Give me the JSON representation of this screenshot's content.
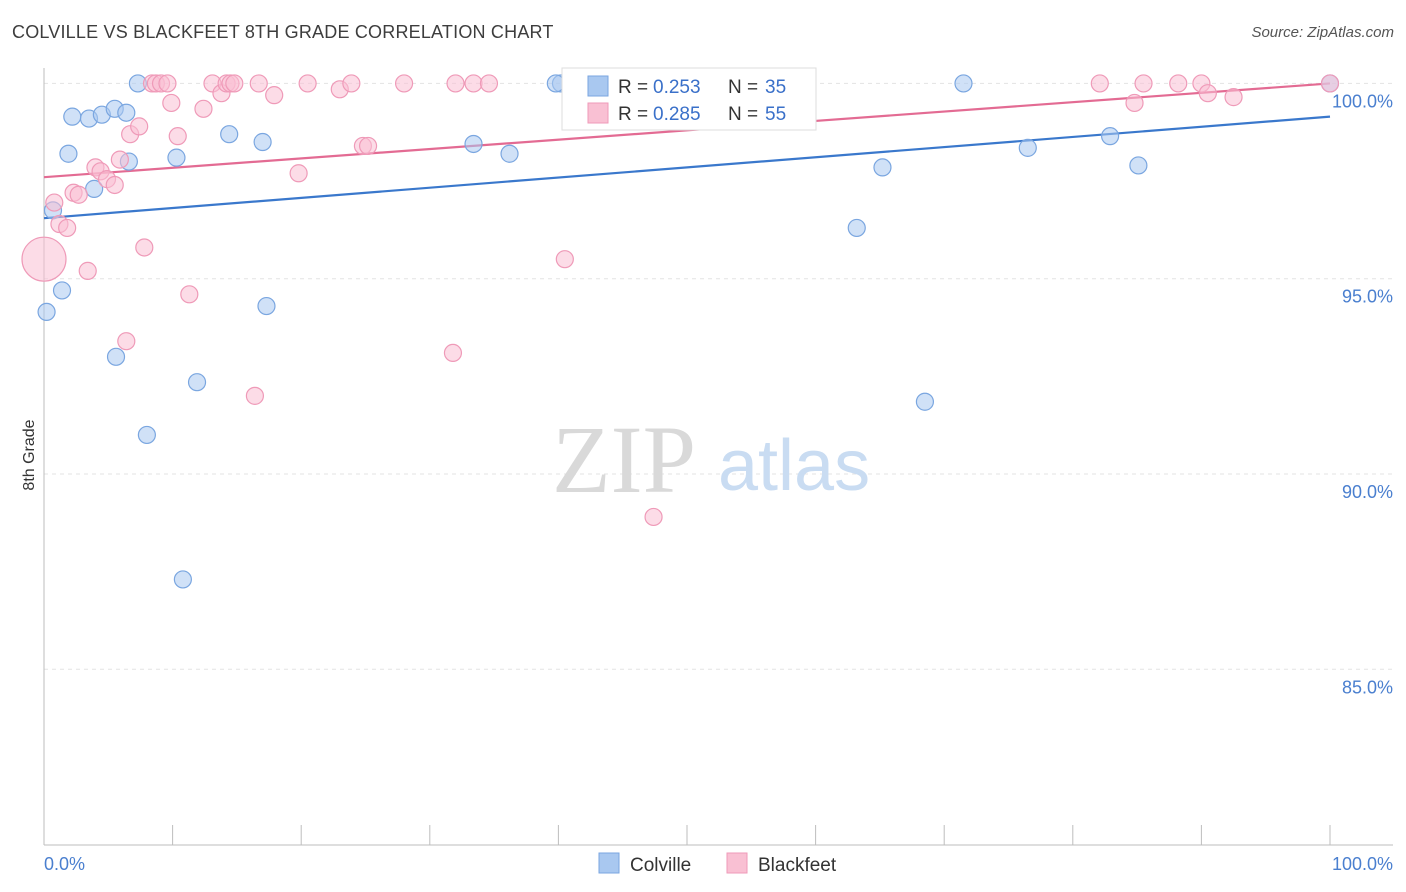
{
  "title": "COLVILLE VS BLACKFEET 8TH GRADE CORRELATION CHART",
  "source": "Source: ZipAtlas.com",
  "watermark": {
    "zip": "ZIP",
    "atlas": "atlas"
  },
  "chart_data": {
    "type": "scatter",
    "xlabel": "",
    "ylabel": "8th Grade",
    "xlim": [
      0,
      100
    ],
    "ylim": [
      80.5,
      100.6
    ],
    "x_tick_labels": {
      "min": "0.0%",
      "max": "100.0%"
    },
    "y_ticks": [
      {
        "value": 100,
        "label": "100.0%"
      },
      {
        "value": 95,
        "label": "95.0%"
      },
      {
        "value": 90,
        "label": "90.0%"
      },
      {
        "value": 85,
        "label": "85.0%"
      }
    ],
    "legend_position": "top-center",
    "series": [
      {
        "name": "Colville",
        "color": "#a9c8f0",
        "stroke": "#7aa6e0",
        "line_color": "#3a78cc",
        "R": "0.253",
        "N": "35",
        "trend": {
          "x": [
            0,
            100
          ],
          "y": [
            96.55,
            99.15
          ]
        },
        "points": [
          [
            0.2,
            94.15
          ],
          [
            0.7,
            96.75
          ],
          [
            1.4,
            94.7
          ],
          [
            1.9,
            98.2
          ],
          [
            2.2,
            99.15
          ],
          [
            3.5,
            99.1
          ],
          [
            3.9,
            97.3
          ],
          [
            4.5,
            99.2
          ],
          [
            5.6,
            93.0
          ],
          [
            5.5,
            99.35
          ],
          [
            6.4,
            99.25
          ],
          [
            6.6,
            98.0
          ],
          [
            7.3,
            100.0
          ],
          [
            8.0,
            91.0
          ],
          [
            10.3,
            98.1
          ],
          [
            10.8,
            87.3
          ],
          [
            11.9,
            92.35
          ],
          [
            14.4,
            98.7
          ],
          [
            17.3,
            94.3
          ],
          [
            17.0,
            98.5
          ],
          [
            33.4,
            98.45
          ],
          [
            36.2,
            98.2
          ],
          [
            40.2,
            100.0
          ],
          [
            45.4,
            100.0
          ],
          [
            47.1,
            100.0
          ],
          [
            53.8,
            100.0
          ],
          [
            63.2,
            96.3
          ],
          [
            65.2,
            97.85
          ],
          [
            68.5,
            91.85
          ],
          [
            71.5,
            100.0
          ],
          [
            76.5,
            98.35
          ],
          [
            82.9,
            98.65
          ],
          [
            85.1,
            97.9
          ],
          [
            100.0,
            100.0
          ],
          [
            39.8,
            100.0
          ]
        ]
      },
      {
        "name": "Blackfeet",
        "color": "#f9c0d3",
        "stroke": "#ef9ab8",
        "line_color": "#e36b93",
        "R": "0.285",
        "N": "55",
        "trend": {
          "x": [
            0,
            100
          ],
          "y": [
            97.6,
            100.0
          ]
        },
        "points": [
          [
            0.0,
            95.5,
            "large"
          ],
          [
            0.8,
            96.95
          ],
          [
            1.2,
            96.4
          ],
          [
            1.8,
            96.3
          ],
          [
            2.3,
            97.2
          ],
          [
            2.7,
            97.15
          ],
          [
            3.4,
            95.2
          ],
          [
            4.0,
            97.85
          ],
          [
            4.4,
            97.75
          ],
          [
            4.9,
            97.55
          ],
          [
            5.5,
            97.4
          ],
          [
            5.9,
            98.05
          ],
          [
            6.4,
            93.4
          ],
          [
            6.7,
            98.7
          ],
          [
            7.4,
            98.9
          ],
          [
            7.8,
            95.8
          ],
          [
            8.4,
            100.0
          ],
          [
            8.7,
            100.0
          ],
          [
            9.1,
            100.0
          ],
          [
            9.6,
            100.0
          ],
          [
            9.9,
            99.5
          ],
          [
            10.4,
            98.65
          ],
          [
            11.3,
            94.6
          ],
          [
            12.4,
            99.35
          ],
          [
            13.1,
            100.0
          ],
          [
            13.8,
            99.75
          ],
          [
            14.2,
            100.0
          ],
          [
            14.5,
            100.0
          ],
          [
            14.8,
            100.0
          ],
          [
            16.4,
            92.0
          ],
          [
            16.7,
            100.0
          ],
          [
            17.9,
            99.7
          ],
          [
            19.8,
            97.7
          ],
          [
            20.5,
            100.0
          ],
          [
            23.0,
            99.85
          ],
          [
            23.9,
            100.0
          ],
          [
            24.8,
            98.4
          ],
          [
            25.2,
            98.4
          ],
          [
            28.0,
            100.0
          ],
          [
            31.8,
            93.1
          ],
          [
            32.0,
            100.0
          ],
          [
            33.4,
            100.0
          ],
          [
            34.6,
            100.0
          ],
          [
            40.5,
            95.5
          ],
          [
            47.4,
            88.9
          ],
          [
            47.0,
            100.0
          ],
          [
            49.5,
            100.0
          ],
          [
            82.1,
            100.0
          ],
          [
            84.8,
            99.5
          ],
          [
            85.5,
            100.0
          ],
          [
            88.2,
            100.0
          ],
          [
            90.0,
            100.0
          ],
          [
            90.5,
            99.75
          ],
          [
            92.5,
            99.65
          ],
          [
            100.0,
            100.0
          ]
        ]
      }
    ]
  }
}
